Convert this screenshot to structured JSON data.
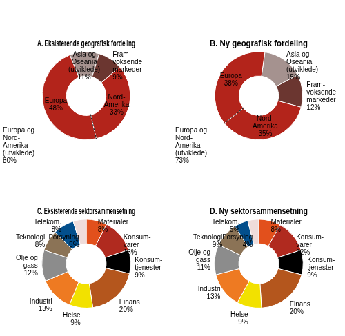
{
  "chart_data": [
    {
      "type": "doughnut",
      "title": "A. Eksisterende geografisk fordeling",
      "categories": [
        "Asia og\nOseania\n(utviklede)",
        "Fram-\nvoksende\nmarkeder",
        "Nord-\nAmerika",
        "Europa"
      ],
      "values": [
        11,
        9,
        33,
        48
      ],
      "value_labels": [
        "11%",
        "9%",
        "33%",
        "48%"
      ],
      "colors": [
        "#a5928f",
        "#6b3630",
        "#b3241b",
        "#b3241b"
      ],
      "data_labels": true,
      "annotation": {
        "text": "Europa og\nNord-\nAmerika\n(utviklede)",
        "value": 80,
        "label": "80%"
      }
    },
    {
      "type": "doughnut",
      "title": "B. Ny geografisk fordeling",
      "categories": [
        "Asia og\nOseania\n(utviklede)",
        "Fram-\nvoksende\nmarkeder",
        "Nord-\nAmerika",
        "Europa"
      ],
      "values": [
        15,
        12,
        35,
        38
      ],
      "value_labels": [
        "15%",
        "12%",
        "35%",
        "38%"
      ],
      "colors": [
        "#a5928f",
        "#6b3630",
        "#b3241b",
        "#b3241b"
      ],
      "data_labels": true,
      "annotation": {
        "text": "Europa og\nNord-\nAmerika\n(utviklede)",
        "value": 73,
        "label": "73%"
      }
    },
    {
      "type": "doughnut",
      "title": "C. Eksisterende sektorsammensetning",
      "categories": [
        "Materialer",
        "Konsum-\nvarer",
        "Konsum-\ntjenester",
        "Finans",
        "Helse",
        "Industri",
        "Olje og\ngass",
        "Teknologi",
        "Telekom.",
        "Forsyning"
      ],
      "values": [
        8,
        13,
        9,
        20,
        9,
        13,
        12,
        8,
        8,
        5
      ],
      "value_labels": [
        "8%",
        "13%",
        "9%",
        "20%",
        "9%",
        "13%",
        "12%",
        "8%",
        "8%",
        "5%"
      ],
      "colors": [
        "#e2501c",
        "#b02a1f",
        "#000000",
        "#b4561d",
        "#f2e100",
        "#ee7a22",
        "#8c8c8c",
        "#8b7356",
        "#034f8c",
        "#efdcda"
      ],
      "data_labels": true
    },
    {
      "type": "doughnut",
      "title": "D. Ny sektorsammensetning",
      "categories": [
        "Materialer",
        "Konsum-\nvarer",
        "Konsum-\ntjenester",
        "Finans",
        "Helse",
        "Industri",
        "Olje og\ngass",
        "Teknologi",
        "Telekom.",
        "Forsyning"
      ],
      "values": [
        8,
        12,
        9,
        20,
        9,
        13,
        11,
        9,
        5,
        4
      ],
      "value_labels": [
        "8%",
        "12%",
        "9%",
        "20%",
        "9%",
        "13%",
        "11%",
        "9%",
        "5%",
        "4%"
      ],
      "colors": [
        "#e2501c",
        "#b02a1f",
        "#000000",
        "#b4561d",
        "#f2e100",
        "#ee7a22",
        "#8c8c8c",
        "#8b7356",
        "#034f8c",
        "#efdcda"
      ],
      "data_labels": true
    }
  ]
}
